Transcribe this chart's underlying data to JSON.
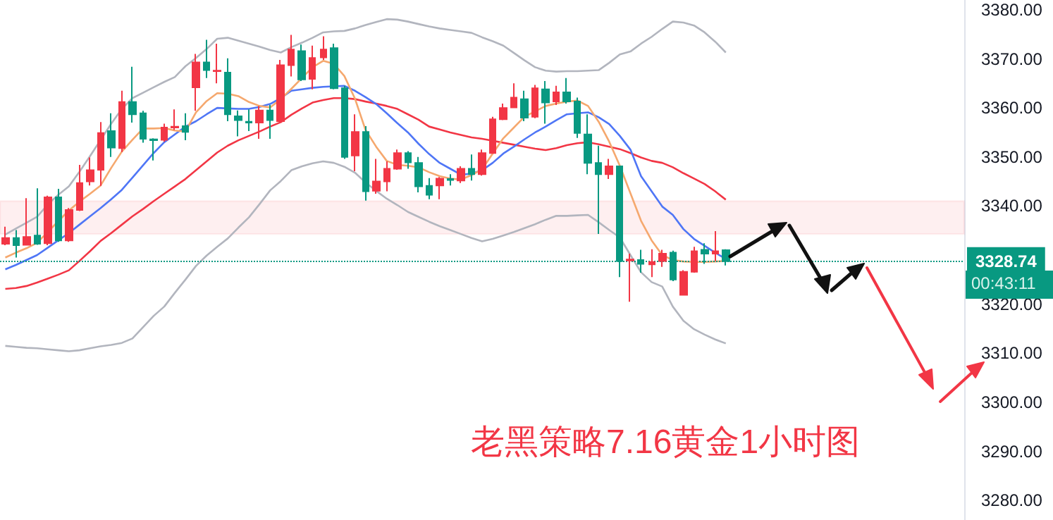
{
  "chart_data": {
    "type": "candlestick",
    "annotations": [
      "老黑策略7.16黄金1小时图",
      "00:43:11"
    ],
    "categories": [
      null,
      null,
      null,
      null,
      null,
      null,
      null,
      null,
      null,
      null,
      null,
      null,
      null,
      null,
      null,
      null,
      null,
      null,
      null,
      null,
      null,
      null,
      null,
      null,
      null,
      null,
      null,
      null,
      null,
      null,
      null,
      null,
      null,
      null,
      null,
      null,
      null,
      null,
      null,
      null,
      null,
      null,
      null,
      null,
      null,
      null,
      null,
      null,
      null,
      null,
      null,
      null,
      null,
      null,
      null,
      null,
      null,
      null,
      null,
      null,
      null,
      null,
      null,
      null,
      null,
      null,
      null,
      null,
      null,
      null,
      null,
      null,
      null,
      null,
      null,
      null,
      null,
      null,
      null,
      null,
      null,
      null,
      null,
      null,
      null,
      null,
      null,
      null,
      null,
      null,
      null
    ],
    "ohlc": [
      [
        3332.3,
        3335.8,
        3332.0,
        3333.5
      ],
      [
        3333.5,
        3335.1,
        3329.5,
        3332.0
      ],
      [
        3332.1,
        3341.6,
        3332.0,
        3333.7
      ],
      [
        3334.0,
        3343.6,
        3332.1,
        3332.3
      ],
      [
        3332.4,
        3342.1,
        3332.0,
        3341.8
      ],
      [
        3341.8,
        3343.5,
        3332.7,
        3333.0
      ],
      [
        3333.0,
        3339.6,
        3332.7,
        3339.2
      ],
      [
        3339.2,
        3348.4,
        3339.0,
        3344.7
      ],
      [
        3345.0,
        3349.9,
        3344.2,
        3347.3
      ],
      [
        3347.4,
        3357.1,
        3344.1,
        3354.9
      ],
      [
        3355.3,
        3358.9,
        3350.0,
        3351.9
      ],
      [
        3351.8,
        3363.5,
        3351.0,
        3361.2
      ],
      [
        3361.2,
        3368.4,
        3357.0,
        3358.7
      ],
      [
        3358.9,
        3359.4,
        3352.9,
        3353.7
      ],
      [
        3353.6,
        3353.8,
        3349.3,
        3353.4
      ],
      [
        3353.5,
        3356.8,
        3353.1,
        3356.0
      ],
      [
        3356.0,
        3359.7,
        3355.5,
        3356.2
      ],
      [
        3356.3,
        3358.9,
        3353.4,
        3355.1
      ],
      [
        3364.2,
        3371.0,
        3359.4,
        3369.3
      ],
      [
        3369.3,
        3373.9,
        3366.1,
        3367.7
      ],
      [
        3367.5,
        3373.1,
        3365.0,
        3367.6
      ],
      [
        3367.2,
        3370.1,
        3357.3,
        3358.7
      ],
      [
        3358.3,
        3359.5,
        3354.2,
        3357.5
      ],
      [
        3357.2,
        3359.7,
        3355.3,
        3357.0
      ],
      [
        3357.0,
        3360.4,
        3353.7,
        3359.5
      ],
      [
        3359.5,
        3360.6,
        3353.7,
        3357.5
      ],
      [
        3357.3,
        3369.8,
        3357.1,
        3368.7
      ],
      [
        3368.7,
        3374.9,
        3366.4,
        3371.9
      ],
      [
        3371.6,
        3372.9,
        3365.5,
        3365.8
      ],
      [
        3365.9,
        3372.7,
        3363.8,
        3370.2
      ],
      [
        3370.3,
        3374.6,
        3369.8,
        3371.9
      ],
      [
        3372.2,
        3373.1,
        3363.8,
        3364.0
      ],
      [
        3364.0,
        3364.5,
        3349.6,
        3350.0
      ],
      [
        3350.3,
        3358.7,
        3347.1,
        3355.1
      ],
      [
        3355.1,
        3356.3,
        3341.1,
        3343.0
      ],
      [
        3343.1,
        3349.6,
        3342.5,
        3345.0
      ],
      [
        3345.0,
        3349.1,
        3343.0,
        3347.6
      ],
      [
        3347.6,
        3351.5,
        3347.4,
        3350.8
      ],
      [
        3350.8,
        3351.2,
        3347.6,
        3348.9
      ],
      [
        3348.8,
        3350.0,
        3342.8,
        3344.0
      ],
      [
        3344.1,
        3345.7,
        3341.4,
        3342.3
      ],
      [
        3344.2,
        3345.9,
        3341.4,
        3345.6
      ],
      [
        3345.5,
        3346.5,
        3344.2,
        3345.3
      ],
      [
        3345.2,
        3348.1,
        3344.7,
        3347.6
      ],
      [
        3347.6,
        3350.5,
        3345.2,
        3346.5
      ],
      [
        3346.5,
        3351.5,
        3346.2,
        3350.8
      ],
      [
        3350.8,
        3358.2,
        3350.7,
        3357.7
      ],
      [
        3357.7,
        3360.9,
        3357.5,
        3360.0
      ],
      [
        3360.1,
        3365.0,
        3360.0,
        3362.1
      ],
      [
        3361.8,
        3363.5,
        3357.3,
        3358.0
      ],
      [
        3358.2,
        3364.7,
        3357.9,
        3364.0
      ],
      [
        3363.8,
        3365.5,
        3356.8,
        3361.1
      ],
      [
        3361.3,
        3364.5,
        3360.6,
        3363.2
      ],
      [
        3363.2,
        3366.1,
        3360.9,
        3361.3
      ],
      [
        3361.3,
        3362.1,
        3353.9,
        3354.9
      ],
      [
        3354.6,
        3358.7,
        3346.5,
        3348.8
      ],
      [
        3348.8,
        3352.3,
        3334.3,
        3346.5
      ],
      [
        3346.5,
        3349.6,
        3345.5,
        3348.1
      ],
      [
        3348.1,
        3348.1,
        3325.5,
        3328.8
      ],
      [
        3328.9,
        3330.3,
        3320.5,
        3329.1
      ],
      [
        3329.0,
        3331.1,
        3326.4,
        3328.2
      ],
      [
        3328.1,
        3331.2,
        3325.5,
        3328.6
      ],
      [
        3328.8,
        3331.1,
        3327.6,
        3330.3
      ],
      [
        3330.5,
        3330.9,
        3324.7,
        3325.0
      ],
      [
        3321.9,
        3326.9,
        3321.9,
        3326.6
      ],
      [
        3326.6,
        3331.7,
        3326.4,
        3330.8
      ],
      [
        3331.1,
        3332.4,
        3328.2,
        3330.3
      ],
      [
        3330.3,
        3334.9,
        3328.8,
        3330.8
      ],
      [
        3331.0,
        3331.2,
        3327.9,
        3328.74
      ],
      null,
      null,
      null,
      null,
      null,
      null,
      null,
      null,
      null,
      null,
      null,
      null,
      null,
      null,
      null,
      null,
      null,
      null,
      null,
      null,
      null,
      null
    ],
    "colors": [
      "#f23645",
      "#089981",
      "#f23645",
      "#089981",
      "#f23645",
      "#089981",
      "#f23645",
      "#f23645",
      "#f23645",
      "#f23645",
      "#089981",
      "#f23645",
      "#089981",
      "#089981",
      "#089981",
      "#f23645",
      "#f23645",
      "#089981",
      "#f23645",
      "#089981",
      "#f23645",
      "#089981",
      "#089981",
      "#089981",
      "#f23645",
      "#089981",
      "#f23645",
      "#f23645",
      "#089981",
      "#f23645",
      "#f23645",
      "#089981",
      "#089981",
      "#f23645",
      "#089981",
      "#f23645",
      "#f23645",
      "#f23645",
      "#089981",
      "#089981",
      "#089981",
      "#f23645",
      "#089981",
      "#f23645",
      "#089981",
      "#f23645",
      "#f23645",
      "#f23645",
      "#f23645",
      "#089981",
      "#f23645",
      "#089981",
      "#f23645",
      "#089981",
      "#089981",
      "#089981",
      "#089981",
      "#f23645",
      "#089981",
      "#f23645",
      "#089981",
      "#f23645",
      "#f23645",
      "#089981",
      "#f23645",
      "#f23645",
      "#089981",
      "#f23645",
      "#089981",
      null,
      null,
      null,
      null,
      null,
      null,
      null,
      null,
      null,
      null,
      null,
      null,
      null,
      null,
      null,
      null,
      null,
      null,
      null,
      null,
      null,
      null
    ],
    "series": [
      {
        "type": "line",
        "color": "#b2b5be",
        "values": [
          3334.2,
          3335.4,
          3336.6,
          3337.8,
          3340.3,
          3342.3,
          3344.0,
          3347.0,
          3350.2,
          3353.5,
          3356.8,
          3359.8,
          3362.0,
          3363.1,
          3364.2,
          3365.3,
          3366.3,
          3368.5,
          3370.2,
          3372.0,
          3374.1,
          3374.3,
          3373.7,
          3373.1,
          3372.5,
          3371.8,
          3371.3,
          3372.4,
          3373.3,
          3374.3,
          3375.4,
          3375.6,
          3375.7,
          3376.2,
          3376.9,
          3377.5,
          3378.1,
          3378.0,
          3377.6,
          3377.1,
          3376.6,
          3376.2,
          3375.9,
          3375.6,
          3375.3,
          3374.4,
          3373.6,
          3372.7,
          3371.2,
          3369.7,
          3368.3,
          3367.6,
          3367.4,
          3367.5,
          3367.5,
          3367.6,
          3367.7,
          3369.2,
          3370.9,
          3371.5,
          3373.1,
          3374.5,
          3376.1,
          3377.6,
          3377.4,
          3376.8,
          3375.4,
          3373.5,
          3371.3,
          null,
          null,
          null,
          null,
          null,
          null,
          null,
          null,
          null,
          null,
          null,
          null,
          null,
          null,
          null,
          null,
          null,
          null,
          null,
          null,
          null,
          null
        ]
      },
      {
        "type": "line",
        "color": "#b2b5be",
        "values": [
          3311.5,
          3311.3,
          3311.1,
          3311.0,
          3310.8,
          3310.6,
          3310.4,
          3310.6,
          3311.0,
          3311.4,
          3311.7,
          3312.1,
          3313.0,
          3315.3,
          3317.6,
          3319.5,
          3322.3,
          3325.0,
          3327.8,
          3329.9,
          3331.7,
          3333.4,
          3335.6,
          3337.7,
          3340.4,
          3343.2,
          3345.1,
          3347.3,
          3348.1,
          3348.7,
          3349.1,
          3348.8,
          3348.0,
          3346.8,
          3344.8,
          3343.1,
          3341.5,
          3340.2,
          3338.8,
          3337.8,
          3336.8,
          3335.9,
          3335.1,
          3334.3,
          3333.5,
          3332.8,
          3333.3,
          3334.0,
          3334.7,
          3335.5,
          3336.3,
          3337.2,
          3338.0,
          3338.0,
          3338.1,
          3338.2,
          3336.7,
          3335.1,
          3333.6,
          3330.0,
          3326.5,
          3324.5,
          3323.6,
          3319.5,
          3316.6,
          3314.9,
          3313.8,
          3312.8,
          3312.0,
          null,
          null,
          null,
          null,
          null,
          null,
          null,
          null,
          null,
          null,
          null,
          null,
          null,
          null,
          null,
          null,
          null,
          null,
          null,
          null,
          null,
          null
        ]
      },
      {
        "type": "line",
        "color": "#f23645",
        "values": [
          3323.1,
          3323.3,
          3323.7,
          3324.4,
          3325.2,
          3326.0,
          3326.9,
          3328.8,
          3330.8,
          3332.9,
          3334.5,
          3336.2,
          3337.9,
          3339.4,
          3341.0,
          3342.5,
          3344.0,
          3345.5,
          3347.3,
          3349.1,
          3350.9,
          3352.3,
          3353.4,
          3354.3,
          3355.2,
          3356.2,
          3357.1,
          3358.6,
          3359.9,
          3361.1,
          3361.6,
          3362.0,
          3362.0,
          3361.8,
          3361.3,
          3360.9,
          3360.4,
          3359.8,
          3358.7,
          3357.6,
          3356.2,
          3355.6,
          3355.0,
          3354.5,
          3354.0,
          3353.7,
          3353.3,
          3352.9,
          3352.5,
          3352.1,
          3351.7,
          3351.4,
          3351.8,
          3352.4,
          3352.8,
          3353.0,
          3352.6,
          3352.1,
          3351.6,
          3350.8,
          3349.9,
          3349.2,
          3348.8,
          3347.9,
          3346.7,
          3345.6,
          3344.5,
          3343.0,
          3341.3,
          null,
          null,
          null,
          null,
          null,
          null,
          null,
          null,
          null,
          null,
          null,
          null,
          null,
          null,
          null,
          null,
          null,
          null,
          null,
          null,
          null,
          null
        ]
      },
      {
        "type": "line",
        "color": "#4f76f6",
        "values": [
          3327.1,
          3328.0,
          3329.0,
          3330.0,
          3331.5,
          3333.0,
          3334.5,
          3336.2,
          3337.9,
          3339.6,
          3341.4,
          3343.3,
          3345.8,
          3348.3,
          3350.8,
          3353.0,
          3354.6,
          3356.2,
          3357.3,
          3358.7,
          3360.0,
          3359.9,
          3359.8,
          3359.8,
          3360.2,
          3360.8,
          3362.0,
          3363.5,
          3363.8,
          3364.1,
          3364.3,
          3364.4,
          3364.5,
          3363.5,
          3362.2,
          3360.8,
          3358.9,
          3356.9,
          3355.0,
          3352.7,
          3350.6,
          3348.8,
          3347.6,
          3346.4,
          3346.6,
          3347.3,
          3348.8,
          3350.7,
          3352.1,
          3353.6,
          3355.0,
          3356.2,
          3357.5,
          3358.7,
          3358.9,
          3359.1,
          3358.1,
          3356.7,
          3354.3,
          3351.5,
          3346.1,
          3343.0,
          3339.9,
          3338.2,
          3335.3,
          3333.3,
          3331.9,
          3330.5,
          3329.2,
          null,
          null,
          null,
          null,
          null,
          null,
          null,
          null,
          null,
          null,
          null,
          null,
          null,
          null,
          null,
          null,
          null,
          null,
          null,
          null,
          null,
          null
        ]
      },
      {
        "type": "line",
        "color": "#f5a86e",
        "values": [
          3329.5,
          3330.5,
          3331.4,
          3332.5,
          3334.7,
          3336.9,
          3339.1,
          3340.9,
          3342.5,
          3344.2,
          3347.8,
          3351.1,
          3353.5,
          3355.8,
          3355.8,
          3355.9,
          3355.4,
          3355.2,
          3359.1,
          3361.4,
          3363.0,
          3362.9,
          3362.4,
          3361.2,
          3360.4,
          3360.1,
          3361.8,
          3363.9,
          3366.1,
          3368.3,
          3369.6,
          3369.0,
          3366.5,
          3361.9,
          3355.5,
          3352.1,
          3349.2,
          3348.4,
          3348.2,
          3347.9,
          3346.9,
          3346.1,
          3345.6,
          3345.4,
          3346.3,
          3347.5,
          3350.7,
          3353.8,
          3356.0,
          3358.2,
          3359.3,
          3360.4,
          3360.9,
          3361.3,
          3361.5,
          3360.4,
          3357.2,
          3353.1,
          3348.2,
          3342.6,
          3337.0,
          3333.0,
          3330.0,
          3329.0,
          3328.7,
          3328.6,
          3328.6,
          3328.7,
          3328.8,
          null,
          null,
          null,
          null,
          null,
          null,
          null,
          null,
          null,
          null,
          null,
          null,
          null,
          null,
          null,
          null,
          null,
          null,
          null,
          null,
          null,
          null
        ]
      }
    ],
    "ylim": [
      3276,
      3382
    ],
    "yticks": [
      {
        "value": 3280,
        "label": "3280.00"
      },
      {
        "value": 3290,
        "label": "3290.00"
      },
      {
        "value": 3300,
        "label": "3300.00"
      },
      {
        "value": 3310,
        "label": "3310.00"
      },
      {
        "value": 3320,
        "label": "3320.00"
      },
      {
        "value": 3340,
        "label": "3340.00"
      },
      {
        "value": 3350,
        "label": "3350.00"
      },
      {
        "value": 3360,
        "label": "3360.00"
      },
      {
        "value": 3370,
        "label": "3370.00"
      },
      {
        "value": 3380,
        "label": "3380.00"
      }
    ],
    "ref_lines": [
      {
        "axis": "y",
        "value": 3328.74,
        "label": "3328.74",
        "color": "#089981",
        "line_style": "dotted"
      }
    ],
    "bands": [
      {
        "axis": "y",
        "from": 3334.3,
        "to": 3341.0,
        "color": "#f23645"
      }
    ],
    "tick_labels": "y",
    "grid": false
  }
}
